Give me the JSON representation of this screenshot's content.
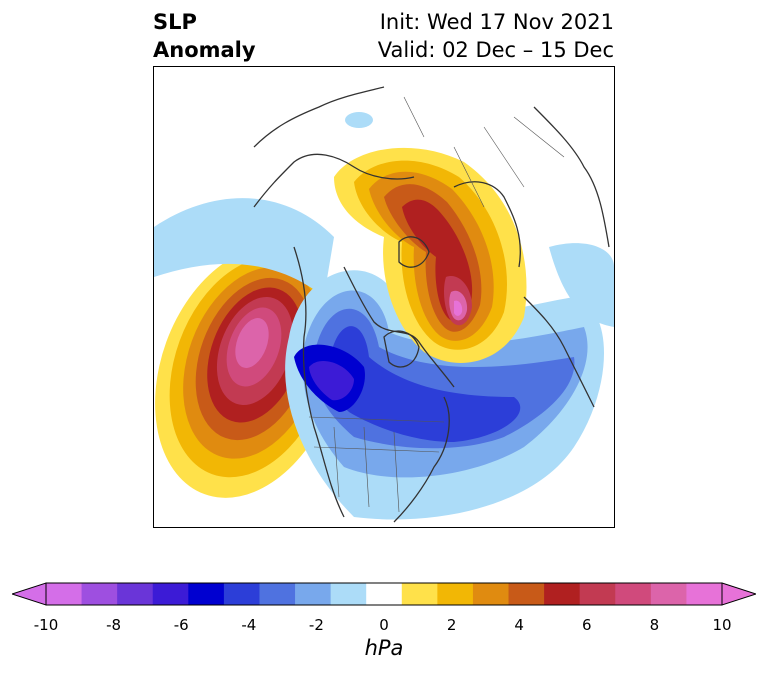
{
  "title": {
    "variable": "SLP",
    "field": "Anomaly",
    "init": "Init: Wed 17 Nov 2021",
    "valid": "Valid: 02 Dec – 15 Dec"
  },
  "map": {
    "projection": "north-polar-stereographic",
    "region": "Northern Hemisphere (North America / North Pacific / North Atlantic)",
    "features": {
      "positive_anomaly_max_hpa": 10,
      "negative_anomaly_min_hpa": -8
    }
  },
  "colorbar": {
    "unit": "hPa",
    "ticks": [
      "-10",
      "-8",
      "-6",
      "-4",
      "-2",
      "0",
      "2",
      "4",
      "6",
      "8",
      "10"
    ],
    "levels": [
      -10,
      -9,
      -8,
      -7,
      -6,
      -5,
      -4,
      -3,
      -2,
      -1,
      1,
      2,
      3,
      4,
      5,
      6,
      7,
      8,
      9,
      10
    ],
    "colors": [
      "#d46ee8",
      "#9e4fe0",
      "#6a35d8",
      "#3c1bd6",
      "#0000d0",
      "#2c3ed8",
      "#4f72e0",
      "#78a8ec",
      "#acdcf8",
      "#ffffff",
      "#ffe14a",
      "#f2b705",
      "#e08b10",
      "#c85a18",
      "#b02020",
      "#c23a52",
      "#d04a7c",
      "#dc64aa",
      "#e772d8"
    ],
    "extend": "both"
  }
}
